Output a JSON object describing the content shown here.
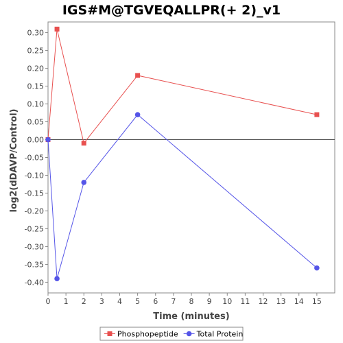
{
  "chart_data": {
    "type": "line",
    "title": "IGS#M@TGVEQALLPR(+ 2)_v1",
    "xlabel": "Time (minutes)",
    "ylabel": "log2(dDAVP/Control)",
    "xlim": [
      0,
      16
    ],
    "ylim": [
      -0.43,
      0.33
    ],
    "x_ticks": [
      0,
      1,
      2,
      3,
      4,
      5,
      6,
      7,
      8,
      9,
      10,
      11,
      12,
      13,
      14,
      15
    ],
    "y_ticks": [
      0.3,
      0.25,
      0.2,
      0.15,
      0.1,
      0.05,
      0.0,
      -0.05,
      -0.1,
      -0.15,
      -0.2,
      -0.25,
      -0.3,
      -0.35,
      -0.4
    ],
    "y_tick_labels": [
      "0.30",
      "0.25",
      "0.20",
      "0.15",
      "0.10",
      "0.05",
      "0.00",
      "-0.05",
      "-0.10",
      "-0.15",
      "-0.20",
      "-0.25",
      "-0.30",
      "-0.35",
      "-0.40"
    ],
    "zero_line": true,
    "grid": false,
    "legend_position": "bottom",
    "series": [
      {
        "name": "Phosphopeptide",
        "color": "#e8504f",
        "marker": "square",
        "x": [
          0,
          0.5,
          2,
          5,
          15
        ],
        "y": [
          0.0,
          0.31,
          -0.01,
          0.18,
          0.07
        ]
      },
      {
        "name": "Total Protein",
        "color": "#5555e8",
        "marker": "circle",
        "x": [
          0,
          0.5,
          2,
          5,
          15
        ],
        "y": [
          0.0,
          -0.39,
          -0.12,
          0.07,
          -0.36
        ]
      }
    ]
  }
}
